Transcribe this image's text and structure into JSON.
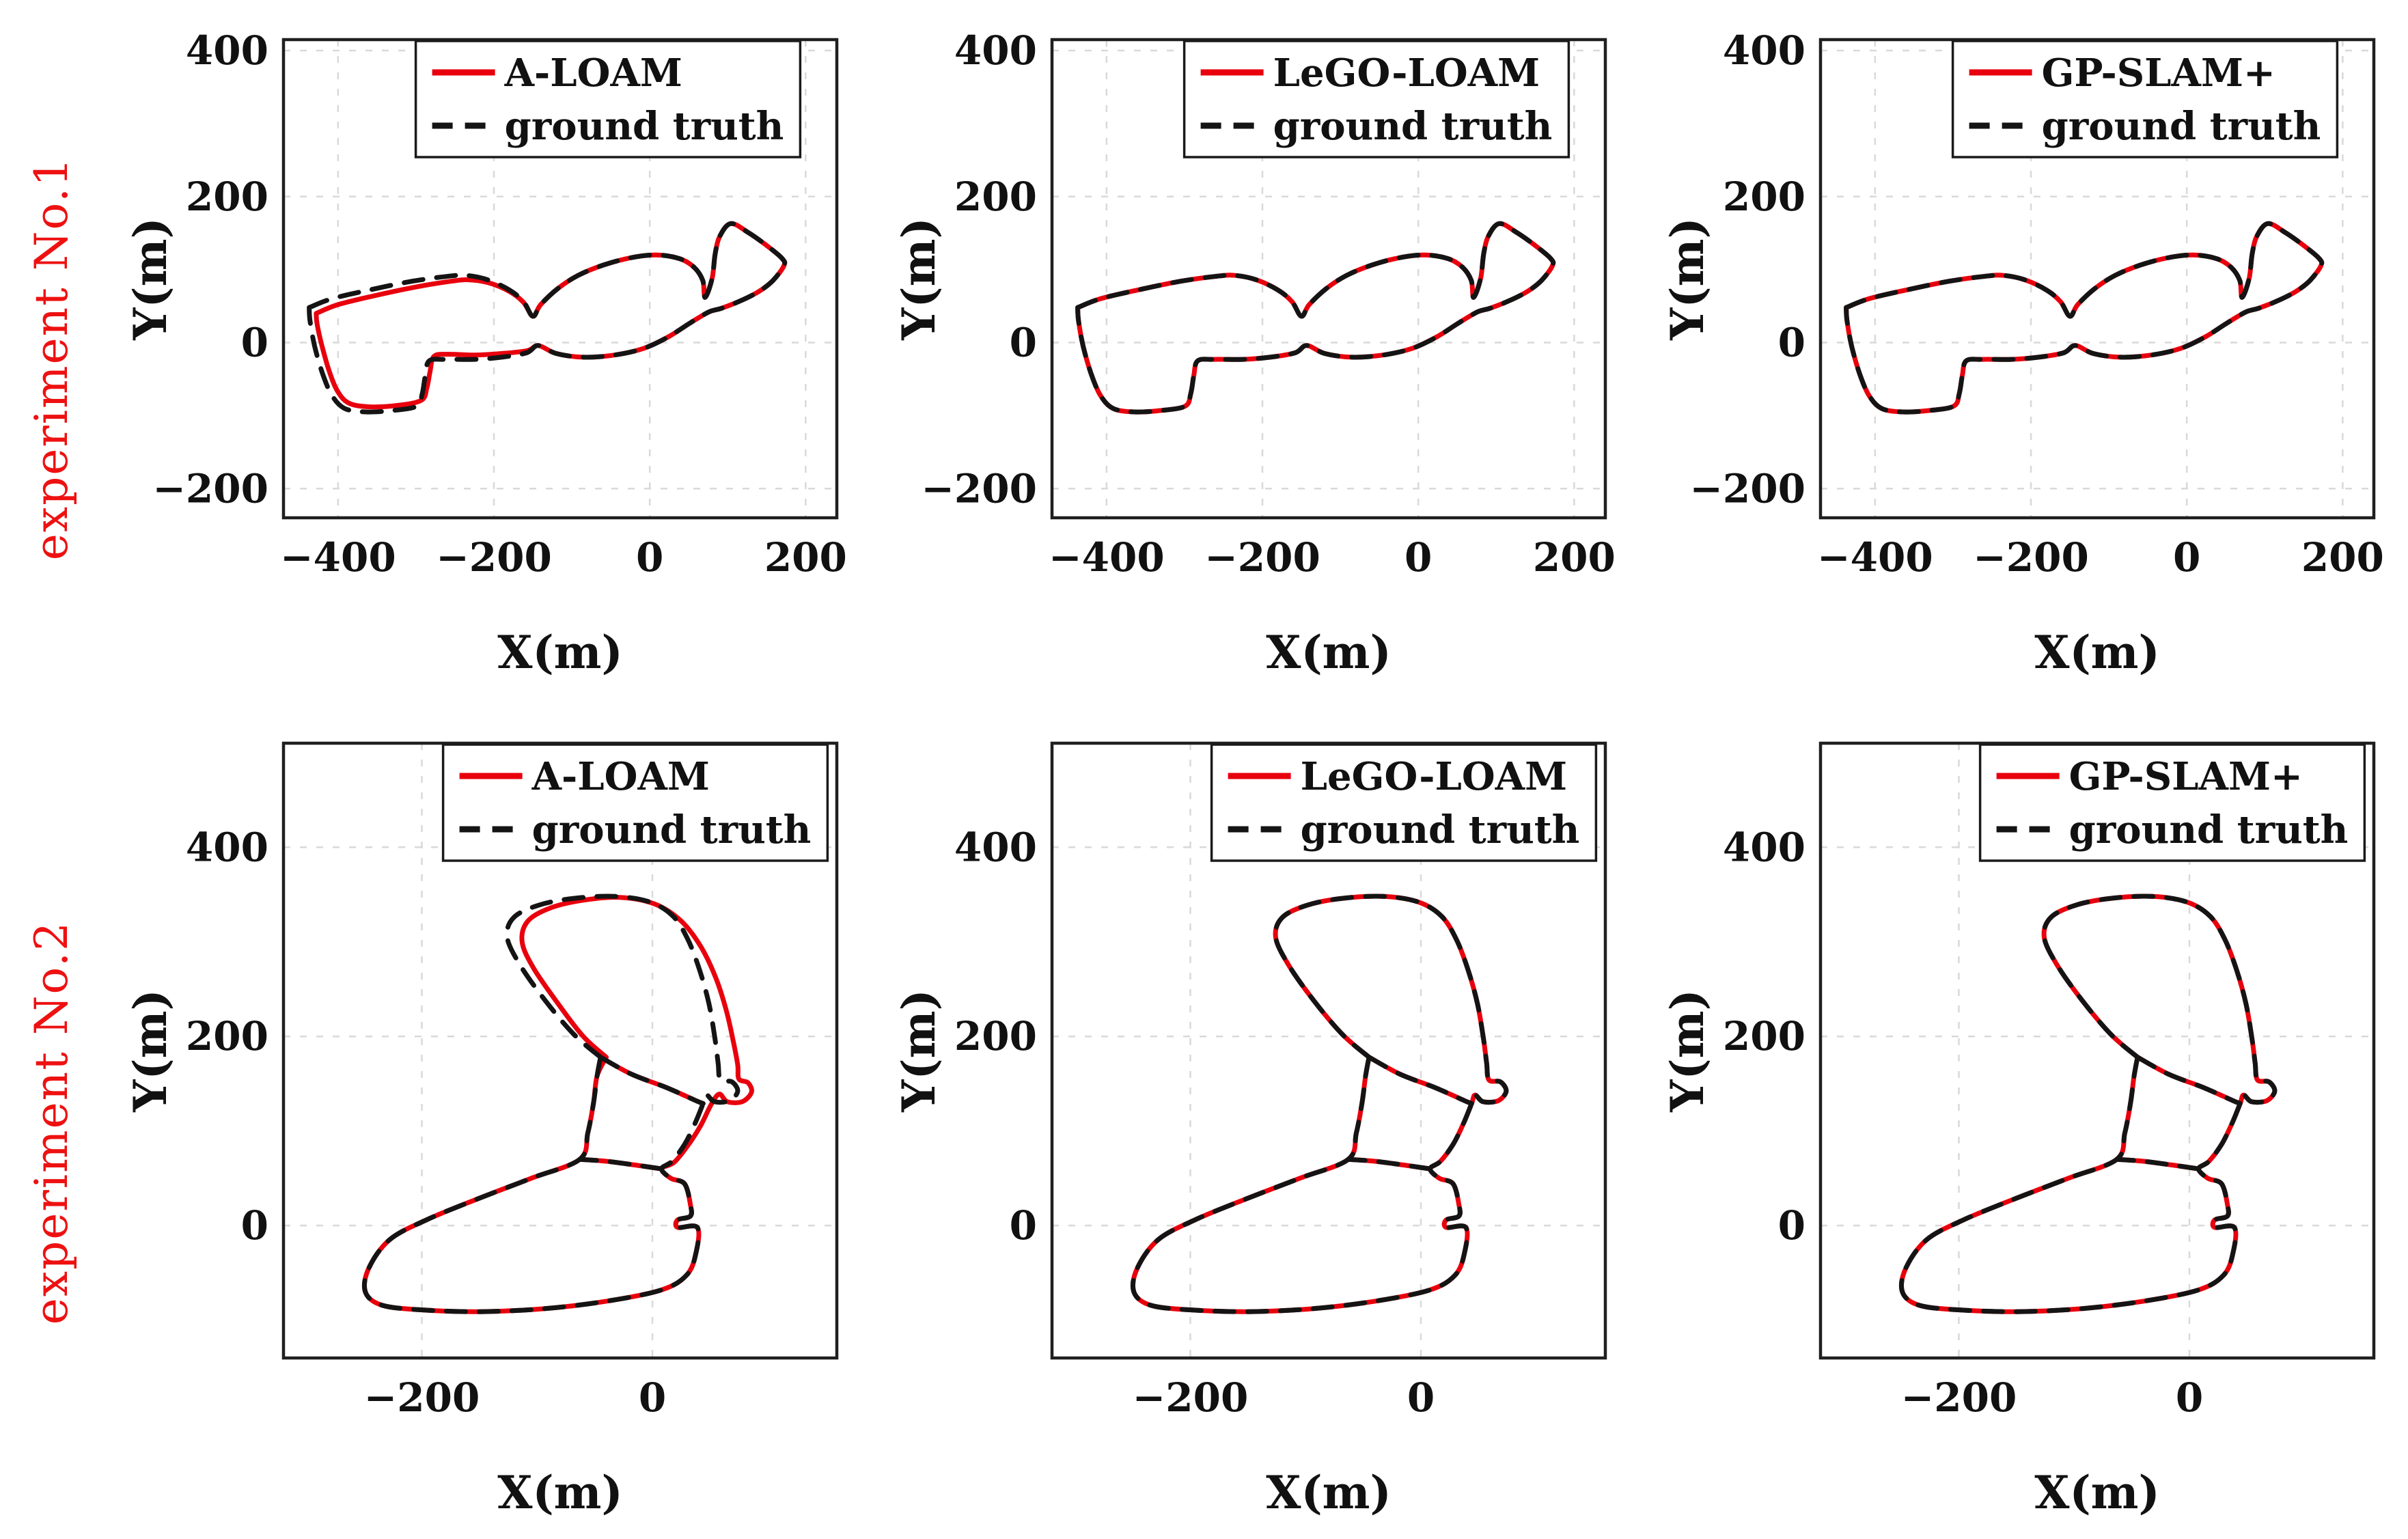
{
  "figure": {
    "rows": [
      {
        "label": "experiment No.1"
      },
      {
        "label": "experiment No.2"
      }
    ]
  },
  "colors": {
    "estimate": "#e8000d",
    "ground_truth": "#141414",
    "grid": "#d9d9d9",
    "axis": "#1f1f1f",
    "row_label": "#ee1111",
    "tick_text": "#111111"
  },
  "trajectories": {
    "exp1_gt": [
      [
        [
          -437,
          48
        ],
        [
          -408,
          60
        ],
        [
          -360,
          72
        ],
        [
          -305,
          84
        ],
        [
          -258,
          91
        ],
        [
          -235,
          92
        ],
        [
          -208,
          86
        ],
        [
          -180,
          72
        ],
        [
          -162,
          56
        ],
        [
          -150,
          36
        ],
        [
          -140,
          52
        ],
        [
          -118,
          74
        ],
        [
          -92,
          92
        ],
        [
          -60,
          106
        ],
        [
          -25,
          116
        ],
        [
          8,
          120
        ],
        [
          38,
          115
        ],
        [
          57,
          103
        ],
        [
          68,
          85
        ],
        [
          71,
          62
        ],
        [
          80,
          88
        ],
        [
          84,
          122
        ],
        [
          90,
          146
        ],
        [
          104,
          163
        ],
        [
          126,
          151
        ],
        [
          150,
          133
        ],
        [
          170,
          115
        ],
        [
          172,
          105
        ],
        [
          158,
          85
        ],
        [
          140,
          70
        ],
        [
          116,
          57
        ],
        [
          92,
          47
        ],
        [
          76,
          42
        ],
        [
          52,
          27
        ],
        [
          24,
          8
        ],
        [
          -8,
          -8
        ],
        [
          -45,
          -17
        ],
        [
          -85,
          -20
        ],
        [
          -120,
          -15
        ],
        [
          -143,
          -4
        ],
        [
          -158,
          -14
        ],
        [
          -190,
          -20
        ],
        [
          -225,
          -23
        ],
        [
          -262,
          -23
        ],
        [
          -283,
          -25
        ],
        [
          -288,
          -45
        ],
        [
          -292,
          -70
        ],
        [
          -299,
          -87
        ],
        [
          -330,
          -93
        ],
        [
          -365,
          -95
        ],
        [
          -392,
          -90
        ],
        [
          -408,
          -72
        ],
        [
          -420,
          -42
        ],
        [
          -430,
          -5
        ],
        [
          -436,
          30
        ],
        [
          -437,
          48
        ]
      ]
    ],
    "exp1_aloam": [
      [
        [
          -428,
          40
        ],
        [
          -400,
          52
        ],
        [
          -354,
          64
        ],
        [
          -301,
          76
        ],
        [
          -255,
          84
        ],
        [
          -233,
          86
        ],
        [
          -207,
          82
        ],
        [
          -180,
          70
        ],
        [
          -162,
          55
        ],
        [
          -150,
          36
        ],
        [
          -140,
          52
        ],
        [
          -118,
          74
        ],
        [
          -92,
          92
        ],
        [
          -60,
          106
        ],
        [
          -25,
          116
        ],
        [
          8,
          120
        ],
        [
          38,
          115
        ],
        [
          57,
          103
        ],
        [
          68,
          85
        ],
        [
          71,
          62
        ],
        [
          80,
          88
        ],
        [
          84,
          122
        ],
        [
          90,
          146
        ],
        [
          104,
          163
        ],
        [
          126,
          151
        ],
        [
          150,
          133
        ],
        [
          170,
          115
        ],
        [
          172,
          105
        ],
        [
          158,
          85
        ],
        [
          140,
          70
        ],
        [
          116,
          57
        ],
        [
          92,
          47
        ],
        [
          76,
          42
        ],
        [
          52,
          27
        ],
        [
          24,
          8
        ],
        [
          -8,
          -8
        ],
        [
          -45,
          -17
        ],
        [
          -85,
          -20
        ],
        [
          -120,
          -15
        ],
        [
          -143,
          -4
        ],
        [
          -157,
          -11
        ],
        [
          -190,
          -15
        ],
        [
          -224,
          -17
        ],
        [
          -259,
          -16
        ],
        [
          -277,
          -19
        ],
        [
          -282,
          -40
        ],
        [
          -286,
          -62
        ],
        [
          -293,
          -79
        ],
        [
          -323,
          -86
        ],
        [
          -359,
          -88
        ],
        [
          -386,
          -83
        ],
        [
          -401,
          -66
        ],
        [
          -412,
          -37
        ],
        [
          -421,
          -3
        ],
        [
          -427,
          26
        ],
        [
          -428,
          40
        ]
      ]
    ],
    "exp2_gt": [
      [
        [
          -45,
          178
        ],
        [
          -68,
          202
        ],
        [
          -93,
          238
        ],
        [
          -115,
          276
        ],
        [
          -126,
          305
        ],
        [
          -120,
          326
        ],
        [
          -98,
          339
        ],
        [
          -68,
          346
        ],
        [
          -32,
          348
        ],
        [
          -2,
          342
        ],
        [
          18,
          327
        ],
        [
          31,
          302
        ],
        [
          41,
          270
        ],
        [
          49,
          235
        ],
        [
          54,
          200
        ],
        [
          57,
          172
        ],
        [
          59,
          154
        ],
        [
          69,
          152
        ],
        [
          74,
          142
        ],
        [
          67,
          132
        ],
        [
          54,
          131
        ],
        [
          47,
          138
        ],
        [
          44,
          129
        ],
        [
          37,
          108
        ],
        [
          28,
          86
        ],
        [
          17,
          68
        ],
        [
          8,
          60
        ],
        [
          16,
          50
        ],
        [
          28,
          44
        ],
        [
          33,
          22
        ],
        [
          33,
          10
        ],
        [
          22,
          6
        ],
        [
          22,
          -2
        ],
        [
          39,
          -2
        ],
        [
          38,
          -28
        ],
        [
          30,
          -52
        ],
        [
          8,
          -68
        ],
        [
          -40,
          -80
        ],
        [
          -95,
          -88
        ],
        [
          -150,
          -91
        ],
        [
          -202,
          -89
        ],
        [
          -235,
          -84
        ],
        [
          -249,
          -70
        ],
        [
          -246,
          -45
        ],
        [
          -228,
          -15
        ],
        [
          -196,
          6
        ],
        [
          -152,
          28
        ],
        [
          -105,
          50
        ],
        [
          -63,
          70
        ],
        [
          -56,
          98
        ],
        [
          -51,
          130
        ],
        [
          -48,
          158
        ],
        [
          -45,
          178
        ]
      ],
      [
        [
          -45,
          178
        ],
        [
          -18,
          160
        ],
        [
          12,
          146
        ],
        [
          38,
          132
        ],
        [
          44,
          129
        ]
      ],
      [
        [
          8,
          60
        ],
        [
          -15,
          64
        ],
        [
          -40,
          68
        ],
        [
          -63,
          70
        ]
      ]
    ],
    "exp2_aloam": [
      [
        [
          -40,
          178
        ],
        [
          -60,
          200
        ],
        [
          -82,
          235
        ],
        [
          -103,
          272
        ],
        [
          -113,
          300
        ],
        [
          -108,
          322
        ],
        [
          -88,
          336
        ],
        [
          -60,
          344
        ],
        [
          -28,
          347
        ],
        [
          2,
          340
        ],
        [
          25,
          322
        ],
        [
          42,
          295
        ],
        [
          55,
          262
        ],
        [
          64,
          228
        ],
        [
          70,
          196
        ],
        [
          74,
          170
        ],
        [
          75,
          155
        ],
        [
          83,
          151
        ],
        [
          86,
          141
        ],
        [
          78,
          131
        ],
        [
          65,
          131
        ],
        [
          58,
          139
        ],
        [
          51,
          128
        ],
        [
          42,
          106
        ],
        [
          31,
          85
        ],
        [
          19,
          67
        ],
        [
          8,
          60
        ],
        [
          16,
          50
        ],
        [
          28,
          44
        ],
        [
          33,
          22
        ],
        [
          33,
          10
        ],
        [
          22,
          6
        ],
        [
          22,
          -2
        ],
        [
          39,
          -2
        ],
        [
          38,
          -28
        ],
        [
          30,
          -52
        ],
        [
          8,
          -68
        ],
        [
          -40,
          -80
        ],
        [
          -95,
          -88
        ],
        [
          -150,
          -91
        ],
        [
          -202,
          -89
        ],
        [
          -235,
          -84
        ],
        [
          -249,
          -70
        ],
        [
          -246,
          -45
        ],
        [
          -228,
          -15
        ],
        [
          -196,
          6
        ],
        [
          -152,
          28
        ],
        [
          -105,
          50
        ],
        [
          -63,
          70
        ],
        [
          -56,
          98
        ],
        [
          -51,
          130
        ],
        [
          -48,
          158
        ],
        [
          -40,
          178
        ]
      ],
      [
        [
          -45,
          178
        ],
        [
          -18,
          160
        ],
        [
          12,
          146
        ],
        [
          38,
          132
        ],
        [
          44,
          129
        ]
      ],
      [
        [
          8,
          60
        ],
        [
          -15,
          64
        ],
        [
          -40,
          68
        ],
        [
          -63,
          70
        ]
      ]
    ]
  },
  "chart_data": [
    {
      "type": "line",
      "row": "experiment No.1",
      "method": "A-LOAM",
      "xlabel": "X(m)",
      "ylabel": "Y(m)",
      "xlim": [
        -470,
        240
      ],
      "ylim": [
        -240,
        415
      ],
      "xticks": [
        -400,
        -200,
        0,
        200
      ],
      "xtick_labels": [
        "−400",
        "−200",
        "0",
        "200"
      ],
      "yticks": [
        -200,
        0,
        200,
        400
      ],
      "ytick_labels": [
        "−200",
        "0",
        "200",
        "400"
      ],
      "grid": true,
      "legend_position": "top-center",
      "series": [
        {
          "name": "A-LOAM",
          "role": "estimate",
          "dash": false,
          "trajectory": "exp1_aloam"
        },
        {
          "name": "ground truth",
          "role": "ground_truth",
          "dash": true,
          "trajectory": "exp1_gt"
        }
      ]
    },
    {
      "type": "line",
      "row": "experiment No.1",
      "method": "LeGO-LOAM",
      "xlabel": "X(m)",
      "ylabel": "Y(m)",
      "xlim": [
        -470,
        240
      ],
      "ylim": [
        -240,
        415
      ],
      "xticks": [
        -400,
        -200,
        0,
        200
      ],
      "xtick_labels": [
        "−400",
        "−200",
        "0",
        "200"
      ],
      "yticks": [
        -200,
        0,
        200,
        400
      ],
      "ytick_labels": [
        "−200",
        "0",
        "200",
        "400"
      ],
      "grid": true,
      "legend_position": "top-center",
      "series": [
        {
          "name": "LeGO-LOAM",
          "role": "estimate",
          "dash": false,
          "trajectory": "exp1_gt"
        },
        {
          "name": "ground truth",
          "role": "ground_truth",
          "dash": true,
          "trajectory": "exp1_gt"
        }
      ]
    },
    {
      "type": "line",
      "row": "experiment No.1",
      "method": "GP-SLAM+",
      "xlabel": "X(m)",
      "ylabel": "Y(m)",
      "xlim": [
        -470,
        240
      ],
      "ylim": [
        -240,
        415
      ],
      "xticks": [
        -400,
        -200,
        0,
        200
      ],
      "xtick_labels": [
        "−400",
        "−200",
        "0",
        "200"
      ],
      "yticks": [
        -200,
        0,
        200,
        400
      ],
      "ytick_labels": [
        "−200",
        "0",
        "200",
        "400"
      ],
      "grid": true,
      "legend_position": "top-center",
      "series": [
        {
          "name": "GP-SLAM+",
          "role": "estimate",
          "dash": false,
          "trajectory": "exp1_gt"
        },
        {
          "name": "ground truth",
          "role": "ground_truth",
          "dash": true,
          "trajectory": "exp1_gt"
        }
      ]
    },
    {
      "type": "line",
      "row": "experiment No.2",
      "method": "A-LOAM",
      "xlabel": "X(m)",
      "ylabel": "Y(m)",
      "xlim": [
        -320,
        160
      ],
      "ylim": [
        -140,
        510
      ],
      "xticks": [
        -200,
        0
      ],
      "xtick_labels": [
        "−200",
        "0"
      ],
      "yticks": [
        0,
        200,
        400
      ],
      "ytick_labels": [
        "0",
        "200",
        "400"
      ],
      "grid": true,
      "legend_position": "top-center",
      "series": [
        {
          "name": "A-LOAM",
          "role": "estimate",
          "dash": false,
          "trajectory": "exp2_aloam"
        },
        {
          "name": "ground truth",
          "role": "ground_truth",
          "dash": true,
          "trajectory": "exp2_gt"
        }
      ]
    },
    {
      "type": "line",
      "row": "experiment No.2",
      "method": "LeGO-LOAM",
      "xlabel": "X(m)",
      "ylabel": "Y(m)",
      "xlim": [
        -320,
        160
      ],
      "ylim": [
        -140,
        510
      ],
      "xticks": [
        -200,
        0
      ],
      "xtick_labels": [
        "−200",
        "0"
      ],
      "yticks": [
        0,
        200,
        400
      ],
      "ytick_labels": [
        "0",
        "200",
        "400"
      ],
      "grid": true,
      "legend_position": "top-center",
      "series": [
        {
          "name": "LeGO-LOAM",
          "role": "estimate",
          "dash": false,
          "trajectory": "exp2_gt"
        },
        {
          "name": "ground truth",
          "role": "ground_truth",
          "dash": true,
          "trajectory": "exp2_gt"
        }
      ]
    },
    {
      "type": "line",
      "row": "experiment No.2",
      "method": "GP-SLAM+",
      "xlabel": "X(m)",
      "ylabel": "Y(m)",
      "xlim": [
        -320,
        160
      ],
      "ylim": [
        -140,
        510
      ],
      "xticks": [
        -200,
        0
      ],
      "xtick_labels": [
        "−200",
        "0"
      ],
      "yticks": [
        0,
        200,
        400
      ],
      "ytick_labels": [
        "0",
        "200",
        "400"
      ],
      "grid": true,
      "legend_position": "top-center",
      "series": [
        {
          "name": "GP-SLAM+",
          "role": "estimate",
          "dash": false,
          "trajectory": "exp2_gt"
        },
        {
          "name": "ground truth",
          "role": "ground_truth",
          "dash": true,
          "trajectory": "exp2_gt"
        }
      ]
    }
  ]
}
